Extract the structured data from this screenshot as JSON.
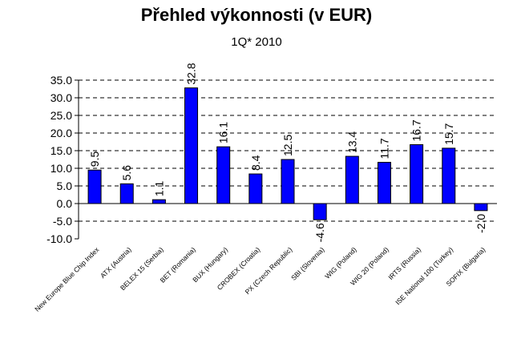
{
  "chart_data": {
    "type": "bar",
    "title": "Přehled výkonnosti (v EUR)",
    "subtitle": "1Q* 2010",
    "xlabel": "",
    "ylabel": "",
    "ylim": [
      -10,
      35
    ],
    "yticks": [
      "35.0",
      "30.0",
      "25.0",
      "20.0",
      "15.0",
      "10.0",
      "5.0",
      "0.0",
      "-5.0",
      "-10.0"
    ],
    "grid": "horizontal dashed",
    "bar_color": "#0000ff",
    "categories": [
      "New Europe Blue Chip Index",
      "ATX (Austria)",
      "BELEX 15 (Serbia)",
      "BET (Romania)",
      "BUX (Hungary)",
      "CROBEX (Croatia)",
      "PX (Czech Republic)",
      "SBI (Slovenia)",
      "WIG (Poland)",
      "WIG 20 (Poland)",
      "IRTS (Russia)",
      "ISE National 100 (Turkey)",
      "SOFIX (Bulgaria)"
    ],
    "values": [
      9.5,
      5.6,
      1.1,
      32.8,
      16.1,
      8.4,
      12.5,
      -4.6,
      13.4,
      11.7,
      16.7,
      15.7,
      -2.0
    ],
    "data_labels": [
      "9.5",
      "5.6",
      "1.1",
      "32.8",
      "16.1",
      "8.4",
      "12.5",
      "-4.6",
      "13.4",
      "11.7",
      "16.7",
      "15.7",
      "-2.0"
    ]
  }
}
